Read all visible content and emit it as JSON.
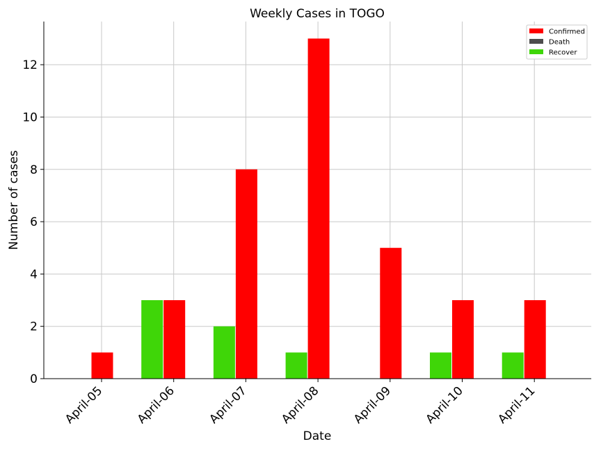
{
  "chart_data": {
    "type": "bar",
    "title": "Weekly Cases in TOGO",
    "xlabel": "Date",
    "ylabel": "Number of cases",
    "categories": [
      "April-05",
      "April-06",
      "April-07",
      "April-08",
      "April-09",
      "April-10",
      "April-11"
    ],
    "series": [
      {
        "name": "Confirmed",
        "color": "#ff0000",
        "values": [
          1,
          3,
          8,
          13,
          5,
          3,
          3
        ]
      },
      {
        "name": "Death",
        "color": "#4d4d4d",
        "values": [
          0,
          0,
          0,
          0,
          0,
          0,
          0
        ]
      },
      {
        "name": "Recover",
        "color": "#3fd608",
        "values": [
          0,
          3,
          2,
          1,
          0,
          1,
          1
        ]
      }
    ],
    "ylim": [
      0,
      13.65
    ],
    "yticks": [
      0,
      2,
      4,
      6,
      8,
      10,
      12
    ],
    "grid": true,
    "legend_position": "top-right"
  }
}
